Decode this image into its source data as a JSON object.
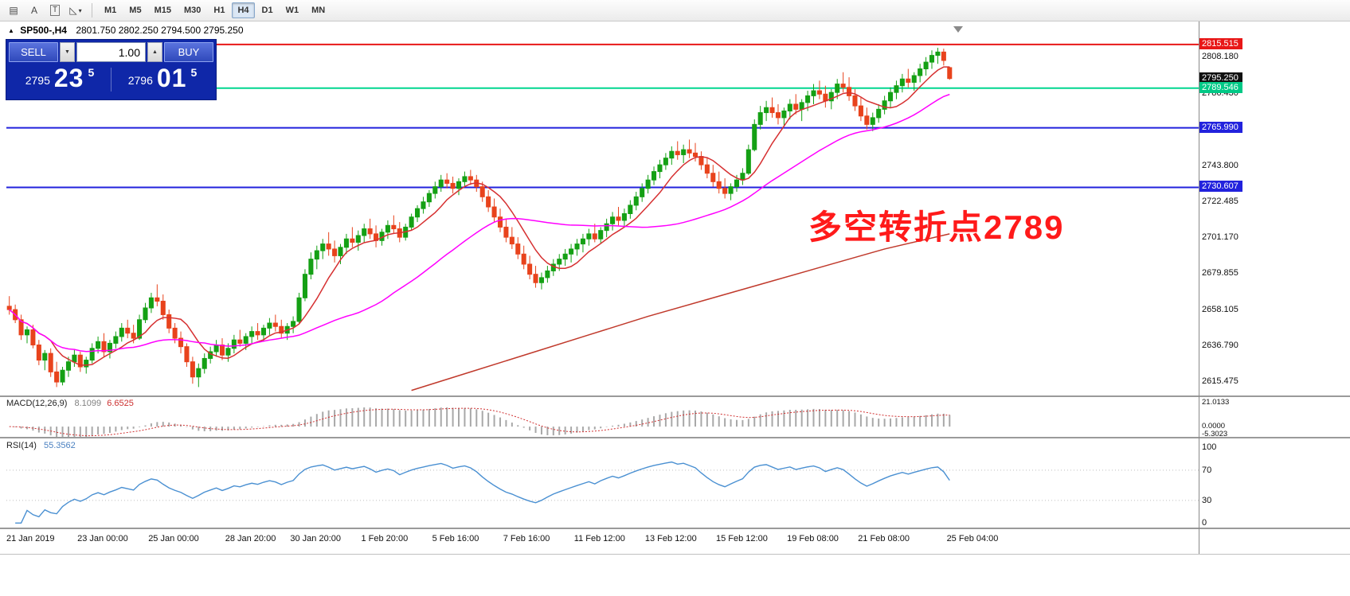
{
  "toolbar": {
    "icons": [
      {
        "name": "line-studies-icon",
        "glyph": "▤"
      },
      {
        "name": "text-label-icon",
        "glyph": "A"
      },
      {
        "name": "text-box-icon",
        "glyph": "T"
      },
      {
        "name": "shapes-dropdown-icon",
        "glyph": "◺",
        "caret": "▾"
      }
    ],
    "timeframes": [
      {
        "label": "M1",
        "active": false
      },
      {
        "label": "M5",
        "active": false
      },
      {
        "label": "M15",
        "active": false
      },
      {
        "label": "M30",
        "active": false
      },
      {
        "label": "H1",
        "active": false
      },
      {
        "label": "H4",
        "active": true
      },
      {
        "label": "D1",
        "active": false
      },
      {
        "label": "W1",
        "active": false
      },
      {
        "label": "MN",
        "active": false
      }
    ]
  },
  "chart": {
    "marker_glyph": "▲",
    "title_symbol": "SP500-,H4",
    "title_ohlc": "2801.750 2802.250 2794.500 2795.250",
    "annotation": {
      "text": "多空转折点2789",
      "color": "#ff1a1a"
    },
    "ylim": [
      2607,
      2823
    ],
    "axis_labels": [
      "2808.180",
      "2786.430",
      "2765.115",
      "2743.800",
      "2722.485",
      "2701.170",
      "2679.855",
      "2658.105",
      "2636.790",
      "2615.475"
    ],
    "hlines": [
      {
        "price": 2815.515,
        "color": "#e81717",
        "width": 2
      },
      {
        "price": 2789.546,
        "color": "#00d68f",
        "width": 2
      },
      {
        "price": 2765.99,
        "color": "#2222dd",
        "width": 2
      },
      {
        "price": 2730.607,
        "color": "#2222dd",
        "width": 2
      }
    ],
    "badges": [
      {
        "text": "2815.515",
        "color": "#e81717",
        "price": 2815.515
      },
      {
        "text": "2795.250",
        "color": "#111111",
        "price": 2795.25
      },
      {
        "text": "2789.546",
        "color": "#00c986",
        "price": 2789.546
      },
      {
        "text": "2765.990",
        "color": "#2222dd",
        "price": 2765.99
      },
      {
        "text": "2730.607",
        "color": "#2222dd",
        "price": 2730.607
      }
    ],
    "time_labels": [
      {
        "label": "21 Jan 2019",
        "bar": 0
      },
      {
        "label": "23 Jan 00:00",
        "bar": 12
      },
      {
        "label": "25 Jan 00:00",
        "bar": 24
      },
      {
        "label": "28 Jan 20:00",
        "bar": 37
      },
      {
        "label": "30 Jan 20:00",
        "bar": 48
      },
      {
        "label": "1 Feb 20:00",
        "bar": 60
      },
      {
        "label": "5 Feb 16:00",
        "bar": 72
      },
      {
        "label": "7 Feb 16:00",
        "bar": 84
      },
      {
        "label": "11 Feb 12:00",
        "bar": 96
      },
      {
        "label": "13 Feb 12:00",
        "bar": 108
      },
      {
        "label": "15 Feb 12:00",
        "bar": 120
      },
      {
        "label": "19 Feb 08:00",
        "bar": 132
      },
      {
        "label": "21 Feb 08:00",
        "bar": 144
      },
      {
        "label": "25 Feb 04:00",
        "bar": 159
      }
    ]
  },
  "trade_panel": {
    "sell_label": "SELL",
    "buy_label": "BUY",
    "volume": "1.00",
    "spin_down_glyph": "▼",
    "spin_up_glyph": "▲",
    "sell_price_small": "2795",
    "sell_price_big": "23",
    "sell_price_sup": "5",
    "buy_price_small": "2796",
    "buy_price_big": "01",
    "buy_price_sup": "5"
  },
  "indicators": {
    "macd": {
      "label": "MACD(12,26,9)",
      "value_main": "8.1099",
      "value_signal": "6.6525",
      "axis_max": "21.0133",
      "axis_zero": "0.0000",
      "axis_min": "-5.3023",
      "ylim": [
        -8.5,
        24.5
      ]
    },
    "rsi": {
      "label": "RSI(14)",
      "value": "55.3562",
      "axis": [
        "100",
        "70",
        "30",
        "0"
      ],
      "levels": [
        70,
        30
      ],
      "ylim": [
        -6,
        112
      ]
    }
  },
  "chart_data": {
    "type": "candlestick",
    "symbol": "SP500-",
    "timeframe": "H4",
    "x_range": [
      "21 Jan 2019",
      "25 Feb 2019"
    ],
    "up_color": "#14a014",
    "down_color": "#e8431c",
    "candles": [
      [
        2660,
        2666,
        2655,
        2658
      ],
      [
        2658,
        2661,
        2650,
        2652
      ],
      [
        2652,
        2655,
        2640,
        2643
      ],
      [
        2643,
        2648,
        2638,
        2646
      ],
      [
        2646,
        2649,
        2635,
        2637
      ],
      [
        2637,
        2640,
        2625,
        2628
      ],
      [
        2628,
        2634,
        2622,
        2632
      ],
      [
        2632,
        2635,
        2618,
        2621
      ],
      [
        2621,
        2627,
        2612,
        2615
      ],
      [
        2615,
        2624,
        2613,
        2622
      ],
      [
        2622,
        2630,
        2618,
        2627
      ],
      [
        2627,
        2634,
        2624,
        2631
      ],
      [
        2631,
        2633,
        2621,
        2624
      ],
      [
        2624,
        2630,
        2620,
        2628
      ],
      [
        2628,
        2638,
        2626,
        2635
      ],
      [
        2635,
        2642,
        2632,
        2639
      ],
      [
        2639,
        2644,
        2630,
        2633
      ],
      [
        2633,
        2640,
        2629,
        2638
      ],
      [
        2638,
        2645,
        2635,
        2642
      ],
      [
        2642,
        2650,
        2639,
        2647
      ],
      [
        2647,
        2652,
        2641,
        2644
      ],
      [
        2644,
        2649,
        2638,
        2641
      ],
      [
        2641,
        2655,
        2640,
        2652
      ],
      [
        2652,
        2662,
        2650,
        2659
      ],
      [
        2659,
        2668,
        2656,
        2665
      ],
      [
        2665,
        2673,
        2660,
        2663
      ],
      [
        2663,
        2667,
        2652,
        2655
      ],
      [
        2655,
        2658,
        2644,
        2647
      ],
      [
        2647,
        2650,
        2638,
        2641
      ],
      [
        2641,
        2645,
        2632,
        2636
      ],
      [
        2636,
        2638,
        2624,
        2627
      ],
      [
        2627,
        2630,
        2614,
        2618
      ],
      [
        2618,
        2626,
        2612,
        2623
      ],
      [
        2623,
        2632,
        2620,
        2629
      ],
      [
        2629,
        2636,
        2626,
        2633
      ],
      [
        2633,
        2640,
        2630,
        2637
      ],
      [
        2637,
        2641,
        2628,
        2631
      ],
      [
        2631,
        2638,
        2627,
        2635
      ],
      [
        2635,
        2643,
        2632,
        2640
      ],
      [
        2640,
        2646,
        2636,
        2638
      ],
      [
        2638,
        2644,
        2634,
        2642
      ],
      [
        2642,
        2648,
        2638,
        2645
      ],
      [
        2645,
        2650,
        2640,
        2643
      ],
      [
        2643,
        2649,
        2639,
        2647
      ],
      [
        2647,
        2653,
        2643,
        2650
      ],
      [
        2650,
        2655,
        2645,
        2648
      ],
      [
        2648,
        2652,
        2641,
        2644
      ],
      [
        2644,
        2650,
        2640,
        2648
      ],
      [
        2648,
        2654,
        2644,
        2651
      ],
      [
        2651,
        2668,
        2650,
        2665
      ],
      [
        2665,
        2682,
        2663,
        2679
      ],
      [
        2679,
        2692,
        2676,
        2688
      ],
      [
        2688,
        2696,
        2682,
        2693
      ],
      [
        2693,
        2700,
        2688,
        2697
      ],
      [
        2697,
        2704,
        2690,
        2694
      ],
      [
        2694,
        2699,
        2686,
        2690
      ],
      [
        2690,
        2697,
        2685,
        2695
      ],
      [
        2695,
        2703,
        2691,
        2700
      ],
      [
        2700,
        2707,
        2695,
        2698
      ],
      [
        2698,
        2705,
        2693,
        2702
      ],
      [
        2702,
        2709,
        2698,
        2706
      ],
      [
        2706,
        2712,
        2700,
        2703
      ],
      [
        2703,
        2708,
        2695,
        2699
      ],
      [
        2699,
        2706,
        2696,
        2704
      ],
      [
        2704,
        2711,
        2700,
        2708
      ],
      [
        2708,
        2714,
        2703,
        2706
      ],
      [
        2706,
        2710,
        2698,
        2701
      ],
      [
        2701,
        2709,
        2699,
        2707
      ],
      [
        2707,
        2715,
        2705,
        2713
      ],
      [
        2713,
        2720,
        2710,
        2718
      ],
      [
        2718,
        2725,
        2715,
        2722
      ],
      [
        2722,
        2729,
        2719,
        2727
      ],
      [
        2727,
        2734,
        2724,
        2731
      ],
      [
        2731,
        2738,
        2728,
        2735
      ],
      [
        2735,
        2739,
        2730,
        2733
      ],
      [
        2733,
        2737,
        2727,
        2730
      ],
      [
        2730,
        2736,
        2726,
        2734
      ],
      [
        2734,
        2740,
        2731,
        2737
      ],
      [
        2737,
        2741,
        2732,
        2735
      ],
      [
        2735,
        2738,
        2728,
        2731
      ],
      [
        2731,
        2734,
        2722,
        2725
      ],
      [
        2725,
        2729,
        2716,
        2719
      ],
      [
        2719,
        2724,
        2710,
        2713
      ],
      [
        2713,
        2718,
        2704,
        2707
      ],
      [
        2707,
        2712,
        2698,
        2701
      ],
      [
        2701,
        2707,
        2694,
        2697
      ],
      [
        2697,
        2701,
        2688,
        2691
      ],
      [
        2691,
        2696,
        2682,
        2685
      ],
      [
        2685,
        2690,
        2676,
        2679
      ],
      [
        2679,
        2684,
        2671,
        2674
      ],
      [
        2674,
        2680,
        2670,
        2677
      ],
      [
        2677,
        2684,
        2674,
        2681
      ],
      [
        2681,
        2688,
        2678,
        2685
      ],
      [
        2685,
        2691,
        2681,
        2688
      ],
      [
        2688,
        2694,
        2684,
        2691
      ],
      [
        2691,
        2697,
        2686,
        2694
      ],
      [
        2694,
        2700,
        2690,
        2697
      ],
      [
        2697,
        2703,
        2692,
        2700
      ],
      [
        2700,
        2706,
        2696,
        2703
      ],
      [
        2703,
        2709,
        2698,
        2700
      ],
      [
        2700,
        2707,
        2697,
        2705
      ],
      [
        2705,
        2712,
        2701,
        2709
      ],
      [
        2709,
        2716,
        2705,
        2713
      ],
      [
        2713,
        2719,
        2708,
        2711
      ],
      [
        2711,
        2718,
        2707,
        2715
      ],
      [
        2715,
        2723,
        2712,
        2720
      ],
      [
        2720,
        2728,
        2717,
        2725
      ],
      [
        2725,
        2733,
        2722,
        2730
      ],
      [
        2730,
        2738,
        2727,
        2735
      ],
      [
        2735,
        2743,
        2732,
        2740
      ],
      [
        2740,
        2747,
        2736,
        2744
      ],
      [
        2744,
        2751,
        2741,
        2748
      ],
      [
        2748,
        2755,
        2744,
        2752
      ],
      [
        2752,
        2758,
        2747,
        2750
      ],
      [
        2750,
        2756,
        2745,
        2753
      ],
      [
        2753,
        2759,
        2748,
        2751
      ],
      [
        2751,
        2757,
        2746,
        2749
      ],
      [
        2749,
        2752,
        2741,
        2744
      ],
      [
        2744,
        2748,
        2736,
        2739
      ],
      [
        2739,
        2744,
        2731,
        2734
      ],
      [
        2734,
        2740,
        2727,
        2730
      ],
      [
        2730,
        2736,
        2724,
        2727
      ],
      [
        2727,
        2733,
        2723,
        2731
      ],
      [
        2731,
        2738,
        2728,
        2735
      ],
      [
        2735,
        2742,
        2732,
        2739
      ],
      [
        2739,
        2756,
        2738,
        2753
      ],
      [
        2753,
        2771,
        2752,
        2768
      ],
      [
        2768,
        2779,
        2765,
        2775
      ],
      [
        2775,
        2782,
        2770,
        2778
      ],
      [
        2778,
        2784,
        2772,
        2775
      ],
      [
        2775,
        2780,
        2768,
        2772
      ],
      [
        2772,
        2778,
        2767,
        2776
      ],
      [
        2776,
        2783,
        2771,
        2780
      ],
      [
        2780,
        2786,
        2774,
        2777
      ],
      [
        2777,
        2783,
        2770,
        2781
      ],
      [
        2781,
        2788,
        2776,
        2785
      ],
      [
        2785,
        2792,
        2780,
        2788
      ],
      [
        2788,
        2794,
        2783,
        2786
      ],
      [
        2786,
        2791,
        2778,
        2782
      ],
      [
        2782,
        2789,
        2777,
        2787
      ],
      [
        2787,
        2795,
        2783,
        2792
      ],
      [
        2792,
        2799,
        2787,
        2790
      ],
      [
        2790,
        2796,
        2782,
        2785
      ],
      [
        2785,
        2789,
        2776,
        2779
      ],
      [
        2779,
        2784,
        2770,
        2773
      ],
      [
        2773,
        2778,
        2765,
        2768
      ],
      [
        2768,
        2775,
        2764,
        2772
      ],
      [
        2772,
        2780,
        2769,
        2777
      ],
      [
        2777,
        2785,
        2774,
        2782
      ],
      [
        2782,
        2790,
        2778,
        2787
      ],
      [
        2787,
        2794,
        2783,
        2791
      ],
      [
        2791,
        2798,
        2787,
        2795
      ],
      [
        2795,
        2801,
        2790,
        2793
      ],
      [
        2793,
        2799,
        2788,
        2797
      ],
      [
        2797,
        2804,
        2793,
        2801
      ],
      [
        2801,
        2808,
        2797,
        2805
      ],
      [
        2805,
        2812,
        2801,
        2809
      ],
      [
        2809,
        2813.5,
        2804,
        2811
      ],
      [
        2811,
        2813,
        2803,
        2806
      ],
      [
        2801.75,
        2802.25,
        2794.5,
        2795.25
      ]
    ],
    "moving_averages": [
      {
        "name": "fast",
        "period": 8,
        "color": "#d63031"
      },
      {
        "name": "medium",
        "period": 34,
        "color": "#ff00ff"
      }
    ],
    "slow_ma": {
      "color": "#c0392b",
      "points": [
        [
          68,
          2610
        ],
        [
          78,
          2621
        ],
        [
          88,
          2632
        ],
        [
          98,
          2643
        ],
        [
          108,
          2654
        ],
        [
          118,
          2664
        ],
        [
          128,
          2674
        ],
        [
          138,
          2684
        ],
        [
          148,
          2694
        ],
        [
          159,
          2703
        ]
      ]
    }
  }
}
